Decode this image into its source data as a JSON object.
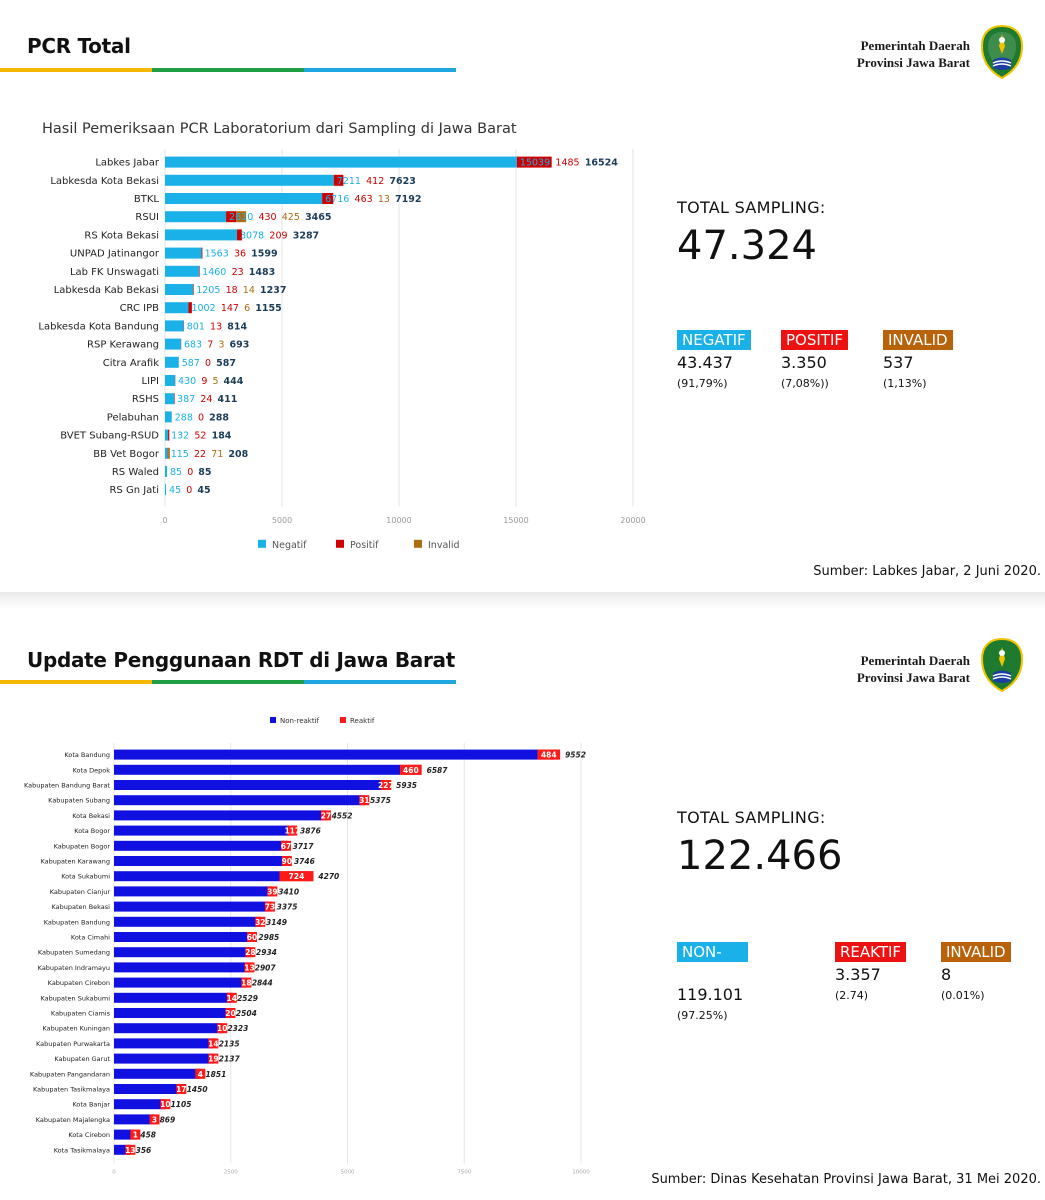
{
  "colors": {
    "stripe": [
      "#f5b800",
      "#1f9e45",
      "#1ea8df"
    ],
    "negatif": "#1ab0e8",
    "positif": "#cc0000",
    "invalid": "#b06a10",
    "nonreaktif": "#1010e0",
    "reaktif": "#ff1a1a",
    "badge_non": "#1ab0e8",
    "badge_pos": "#ee1111",
    "badge_inv": "#b8620a",
    "gov_green": "#1e7a2e",
    "gov_yellow": "#f2c300"
  },
  "icons": {
    "logo": "jawa-barat-emblem-icon"
  },
  "pcr": {
    "title": "PCR Total",
    "gov_line1": "Pemerintah Daerah",
    "gov_line2": "Provinsi Jawa Barat",
    "stats_label": "TOTAL SAMPLING:",
    "stats_total": "47.324",
    "badges": [
      {
        "label": "NEGATIF",
        "value": "43.437",
        "pct": "(91,79%)",
        "color": "#1ab0e8"
      },
      {
        "label": "POSITIF",
        "value": "3.350",
        "pct": "(7,08%))",
        "color": "#ee1111"
      },
      {
        "label": "INVALID",
        "value": "537",
        "pct": "(1,13%)",
        "color": "#b8620a"
      }
    ],
    "source": "Sumber: Labkes Jabar, 2 Juni 2020."
  },
  "rdt": {
    "title": "Update Penggunaan RDT di Jawa Barat",
    "gov_line1": "Pemerintah Daerah",
    "gov_line2": "Provinsi Jawa Barat",
    "stats_label": "TOTAL SAMPLING:",
    "stats_total": "122.466",
    "badges": [
      {
        "label": "NON-REAKTIF",
        "value": "119.101",
        "pct": "(97.25%)",
        "color": "#1ab0e8"
      },
      {
        "label": "REAKTIF",
        "value": "3.357",
        "pct": "(2.74)",
        "color": "#ee1111"
      },
      {
        "label": "INVALID",
        "value": "8",
        "pct": "(0.01%)",
        "color": "#b8620a"
      }
    ],
    "source": "Sumber: Dinas Kesehatan Provinsi Jawa Barat, 31 Mei 2020."
  },
  "chart_data": [
    {
      "type": "bar",
      "orientation": "horizontal",
      "stacked": true,
      "title": "Hasil Pemeriksaan PCR Laboratorium dari Sampling di Jawa Barat",
      "xlim": [
        0,
        20000
      ],
      "xticks": [
        "0",
        "5000",
        "10000",
        "15000",
        "20000"
      ],
      "legend_position": "bottom",
      "categories": [
        "Labkes Jabar",
        "Labkesda Kota Bekasi",
        "BTKL",
        "RSUI",
        "RS Kota Bekasi",
        "UNPAD Jatinangor",
        "Lab FK Unswagati",
        "Labkesda Kab Bekasi",
        "CRC IPB",
        "Labkesda Kota Bandung",
        "RSP Kerawang",
        "Citra Arafik",
        "LIPI",
        "RSHS",
        "Pelabuhan",
        "BVET Subang-RSUD",
        "BB Vet Bogor",
        "RS Waled",
        "RS Gn Jati"
      ],
      "series": [
        {
          "name": "Negatif",
          "color": "#1ab0e8",
          "values": [
            15039,
            7211,
            6716,
            2610,
            3078,
            1563,
            1460,
            1205,
            1002,
            801,
            683,
            587,
            430,
            387,
            288,
            132,
            115,
            85,
            45
          ]
        },
        {
          "name": "Positif",
          "color": "#cc0000",
          "values": [
            1485,
            412,
            463,
            430,
            209,
            36,
            23,
            18,
            147,
            13,
            7,
            0,
            9,
            24,
            0,
            52,
            22,
            0,
            0
          ]
        },
        {
          "name": "Invalid",
          "color": "#b06a10",
          "values": [
            null,
            null,
            13,
            425,
            null,
            null,
            null,
            14,
            6,
            null,
            3,
            null,
            5,
            null,
            null,
            null,
            71,
            null,
            null
          ]
        }
      ],
      "totals": [
        16524,
        7623,
        7192,
        3465,
        3287,
        1599,
        1483,
        1237,
        1155,
        814,
        693,
        587,
        444,
        411,
        288,
        184,
        208,
        85,
        45
      ]
    },
    {
      "type": "bar",
      "orientation": "horizontal",
      "stacked": true,
      "title": "",
      "xlim": [
        0,
        10000
      ],
      "xticks": [
        "0",
        "2500",
        "5000",
        "7500",
        "10000"
      ],
      "legend_position": "top",
      "categories": [
        "Kota Bandung",
        "Kota Depok",
        "Kabupaten Bandung Barat",
        "Kabupaten Subang",
        "Kota Bekasi",
        "Kota Bogor",
        "Kabupaten Bogor",
        "Kabupaten Karawang",
        "Kota Sukabumi",
        "Kabupaten Cianjur",
        "Kabupaten Bekasi",
        "Kabupaten Bandung",
        "Kota Cimahi",
        "Kabupaten Sumedang",
        "Kabupaten Indramayu",
        "Kabupaten Cirebon",
        "Kabupaten Sukabumi",
        "Kabupaten Ciamis",
        "Kabupaten Kuningan",
        "Kabupaten Purwakarta",
        "Kabupaten Garut",
        "Kabupaten Pangandaran",
        "Kabupaten Tasikmalaya",
        "Kota Banjar",
        "Kabupaten Majalengka",
        "Kota Cirebon",
        "Kota Tasikmalaya"
      ],
      "series": [
        {
          "name": "Non-reaktif",
          "color": "#1010e0",
          "values": [
            9068,
            6127,
            5708,
            5344,
            4525,
            3759,
            3650,
            3656,
            3546,
            3371,
            3302,
            3117,
            2925,
            2906,
            2894,
            2826,
            2515,
            2484,
            2313,
            2121,
            2118,
            1847,
            1433,
            1095,
            866,
            457,
            343
          ]
        },
        {
          "name": "Reaktif",
          "color": "#ff1a1a",
          "values": [
            484,
            460,
            227,
            31,
            27,
            117,
            67,
            90,
            724,
            39,
            73,
            32,
            60,
            28,
            13,
            18,
            14,
            20,
            10,
            14,
            19,
            4,
            17,
            10,
            3,
            1,
            13
          ]
        }
      ],
      "totals": [
        9552,
        6587,
        5935,
        5375,
        4552,
        3876,
        3717,
        3746,
        4270,
        3410,
        3375,
        3149,
        2985,
        2934,
        2907,
        2844,
        2529,
        2504,
        2323,
        2135,
        2137,
        1851,
        1450,
        1105,
        869,
        458,
        356
      ]
    }
  ]
}
